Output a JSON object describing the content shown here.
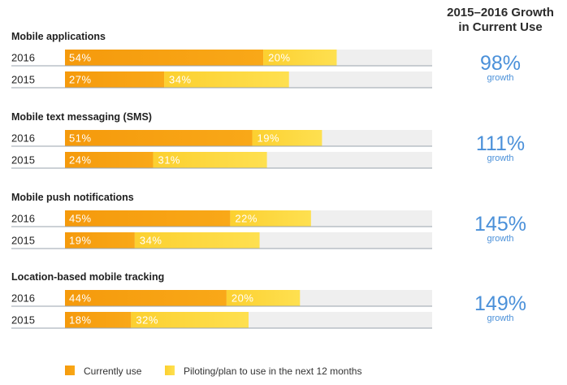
{
  "header": {
    "line1": "2015–2016 Growth",
    "line2": "in Current Use"
  },
  "chart_data": {
    "type": "bar",
    "stacked": true,
    "orientation": "horizontal",
    "xlim": [
      0,
      100
    ],
    "colors": {
      "current": "#f7a00f",
      "piloting": "#fdd43a",
      "track": "#efefef",
      "growth_text": "#4a90d9"
    },
    "series": [
      {
        "key": "current",
        "name": "Currently use"
      },
      {
        "key": "piloting",
        "name": "Piloting/plan to use in the next 12 months"
      }
    ],
    "groups": [
      {
        "category": "Mobile applications",
        "growth": "98%",
        "growth_label": "growth",
        "rows": [
          {
            "year": "2016",
            "current": 54,
            "piloting": 20,
            "current_label": "54%",
            "piloting_label": "20%"
          },
          {
            "year": "2015",
            "current": 27,
            "piloting": 34,
            "current_label": "27%",
            "piloting_label": "34%"
          }
        ]
      },
      {
        "category": "Mobile text messaging (SMS)",
        "growth": "111%",
        "growth_label": "growth",
        "rows": [
          {
            "year": "2016",
            "current": 51,
            "piloting": 19,
            "current_label": "51%",
            "piloting_label": "19%"
          },
          {
            "year": "2015",
            "current": 24,
            "piloting": 31,
            "current_label": "24%",
            "piloting_label": "31%"
          }
        ]
      },
      {
        "category": "Mobile push notifications",
        "growth": "145%",
        "growth_label": "growth",
        "rows": [
          {
            "year": "2016",
            "current": 45,
            "piloting": 22,
            "current_label": "45%",
            "piloting_label": "22%"
          },
          {
            "year": "2015",
            "current": 19,
            "piloting": 34,
            "current_label": "19%",
            "piloting_label": "34%"
          }
        ]
      },
      {
        "category": "Location-based mobile tracking",
        "growth": "149%",
        "growth_label": "growth",
        "rows": [
          {
            "year": "2016",
            "current": 44,
            "piloting": 20,
            "current_label": "44%",
            "piloting_label": "20%"
          },
          {
            "year": "2015",
            "current": 18,
            "piloting": 32,
            "current_label": "18%",
            "piloting_label": "32%"
          }
        ]
      }
    ],
    "legend_position": "bottom"
  }
}
